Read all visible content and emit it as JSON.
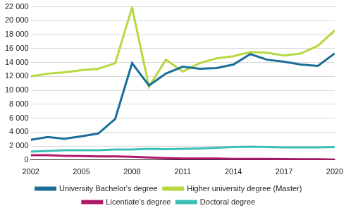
{
  "chart_data": {
    "type": "line",
    "x": [
      2002,
      2003,
      2004,
      2005,
      2006,
      2007,
      2008,
      2009,
      2010,
      2011,
      2012,
      2013,
      2014,
      2015,
      2016,
      2017,
      2018,
      2019,
      2020
    ],
    "series": [
      {
        "name": "University Bachelor's degree",
        "color": "#1a6e9a",
        "values": [
          2900,
          3300,
          3050,
          3400,
          3800,
          5900,
          13900,
          10700,
          12400,
          13400,
          13100,
          13200,
          13700,
          15200,
          14400,
          14100,
          13700,
          13500,
          15300
        ]
      },
      {
        "name": "Higher university degree (Master)",
        "color": "#b5d93f",
        "values": [
          12000,
          12400,
          12600,
          12900,
          13100,
          13900,
          21900,
          10500,
          14400,
          12700,
          13900,
          14600,
          14900,
          15500,
          15400,
          15000,
          15300,
          16400,
          18600
        ]
      },
      {
        "name": "Licentiate's degree",
        "color": "#b0186b",
        "values": [
          700,
          700,
          600,
          550,
          500,
          500,
          450,
          350,
          250,
          200,
          200,
          200,
          150,
          150,
          150,
          120,
          100,
          100,
          50
        ]
      },
      {
        "name": "Doctoral degree",
        "color": "#3cbfb6",
        "values": [
          1200,
          1300,
          1400,
          1400,
          1400,
          1500,
          1500,
          1600,
          1550,
          1600,
          1650,
          1750,
          1850,
          1900,
          1850,
          1800,
          1800,
          1800,
          1850
        ]
      }
    ],
    "xlim": [
      2002,
      2020
    ],
    "xticks": [
      2002,
      2005,
      2008,
      2011,
      2014,
      2017,
      2020
    ],
    "ylim": [
      0,
      22000
    ],
    "yticks": [
      0,
      {
        "value": 2000,
        "label": "2 000"
      },
      {
        "value": 4000,
        "label": "4 000"
      },
      {
        "value": 6000,
        "label": "6 000"
      },
      {
        "value": 8000,
        "label": "8 000"
      },
      {
        "value": 10000,
        "label": "10 000"
      },
      {
        "value": 12000,
        "label": "12 000"
      },
      {
        "value": 14000,
        "label": "14 000"
      },
      {
        "value": 16000,
        "label": "16 000"
      },
      {
        "value": 18000,
        "label": "18 000"
      },
      {
        "value": 20000,
        "label": "20 000"
      },
      {
        "value": 22000,
        "label": "22 000"
      }
    ],
    "grid": true,
    "legend": "bottom"
  }
}
